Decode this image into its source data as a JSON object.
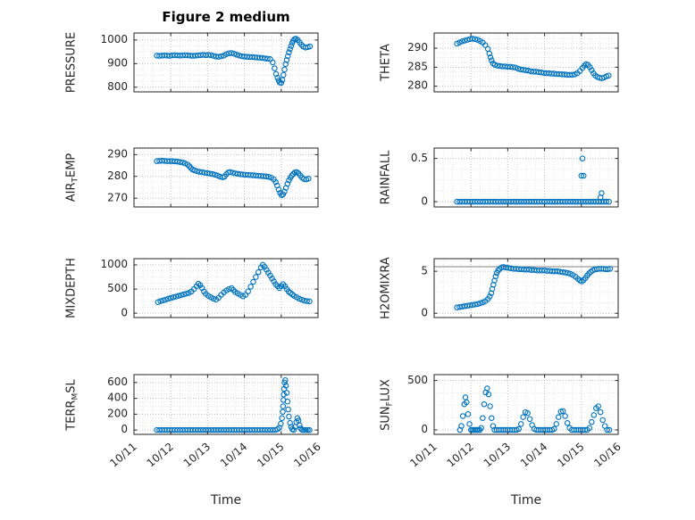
{
  "title": "Figure 2 medium",
  "xlabel": "Time",
  "marker_color": "#0072BD",
  "x_axis": {
    "lim": [
      11,
      16
    ],
    "ticks": [
      11,
      12,
      13,
      14,
      15,
      16
    ],
    "ticklabels": [
      "10/11",
      "10/12",
      "10/13",
      "10/14",
      "10/15",
      "10/16"
    ]
  },
  "chart_data": [
    {
      "name": "PRESSURE",
      "type": "scatter",
      "ylabel": {
        "pre": "PRESSURE",
        "sub": "",
        "post": ""
      },
      "ylim": [
        780,
        1030
      ],
      "yticks": [
        800,
        900,
        1000
      ],
      "x": [
        11.62,
        11.69,
        11.76,
        11.83,
        11.9,
        11.97,
        12.04,
        12.11,
        12.18,
        12.25,
        12.32,
        12.39,
        12.46,
        12.53,
        12.6,
        12.67,
        12.74,
        12.81,
        12.88,
        12.95,
        13.02,
        13.09,
        13.16,
        13.23,
        13.3,
        13.37,
        13.44,
        13.51,
        13.58,
        13.65,
        13.72,
        13.79,
        13.86,
        13.93,
        14.0,
        14.07,
        14.14,
        14.21,
        14.28,
        14.35,
        14.42,
        14.49,
        14.56,
        14.63,
        14.7,
        14.77,
        14.82,
        14.86,
        14.9,
        14.93,
        14.96,
        15.0,
        15.03,
        15.06,
        15.09,
        15.12,
        15.15,
        15.18,
        15.21,
        15.24,
        15.27,
        15.3,
        15.33,
        15.36,
        15.4,
        15.45,
        15.5,
        15.55,
        15.6,
        15.66,
        15.72,
        15.78
      ],
      "y": [
        934,
        933,
        934,
        935,
        934,
        933,
        935,
        936,
        935,
        934,
        935,
        936,
        935,
        934,
        933,
        934,
        935,
        936,
        937,
        936,
        937,
        936,
        933,
        930,
        929,
        931,
        934,
        940,
        944,
        945,
        942,
        938,
        934,
        931,
        930,
        929,
        928,
        928,
        927,
        926,
        925,
        924,
        922,
        921,
        919,
        905,
        880,
        856,
        840,
        828,
        820,
        818,
        830,
        852,
        875,
        898,
        915,
        932,
        948,
        962,
        975,
        988,
        998,
        1004,
        1006,
        1000,
        990,
        980,
        972,
        968,
        970,
        973
      ]
    },
    {
      "name": "THETA",
      "type": "scatter",
      "ylabel": {
        "pre": "THETA",
        "sub": "",
        "post": ""
      },
      "ylim": [
        278.5,
        294
      ],
      "yticks": [
        280,
        285,
        290
      ],
      "x": [
        11.62,
        11.69,
        11.76,
        11.83,
        11.9,
        11.97,
        12.04,
        12.11,
        12.18,
        12.25,
        12.32,
        12.39,
        12.46,
        12.5,
        12.53,
        12.56,
        12.6,
        12.65,
        12.72,
        12.79,
        12.86,
        12.93,
        13.0,
        13.07,
        13.14,
        13.21,
        13.28,
        13.35,
        13.42,
        13.49,
        13.56,
        13.63,
        13.7,
        13.77,
        13.84,
        13.91,
        13.98,
        14.05,
        14.12,
        14.19,
        14.26,
        14.33,
        14.4,
        14.47,
        14.54,
        14.61,
        14.68,
        14.75,
        14.82,
        14.89,
        14.96,
        15.03,
        15.08,
        15.13,
        15.18,
        15.23,
        15.28,
        15.33,
        15.38,
        15.44,
        15.5,
        15.56,
        15.62,
        15.68,
        15.74
      ],
      "y": [
        291.2,
        291.5,
        291.8,
        292.0,
        292.2,
        292.4,
        292.5,
        292.4,
        292.2,
        291.9,
        291.5,
        290.8,
        289.8,
        288.6,
        287.6,
        286.8,
        286.0,
        285.6,
        285.4,
        285.3,
        285.2,
        285.2,
        285.1,
        285.1,
        285.0,
        284.9,
        284.6,
        284.4,
        284.3,
        284.2,
        284.1,
        283.9,
        283.8,
        283.8,
        283.7,
        283.6,
        283.5,
        283.4,
        283.4,
        283.3,
        283.3,
        283.2,
        283.2,
        283.1,
        283.1,
        283.0,
        283.0,
        283.0,
        283.1,
        283.4,
        284.0,
        284.8,
        285.4,
        285.8,
        285.6,
        285.0,
        284.2,
        283.4,
        282.8,
        282.4,
        282.2,
        282.1,
        282.3,
        282.6,
        282.8
      ]
    },
    {
      "name": "AIRTEMP",
      "type": "scatter",
      "ylabel": {
        "pre": "AIR",
        "sub": "T",
        "post": "EMP"
      },
      "ylim": [
        266,
        293
      ],
      "yticks": [
        270,
        280,
        290
      ],
      "x": [
        11.62,
        11.69,
        11.76,
        11.83,
        11.9,
        11.97,
        12.04,
        12.11,
        12.18,
        12.25,
        12.32,
        12.39,
        12.46,
        12.51,
        12.55,
        12.59,
        12.64,
        12.71,
        12.78,
        12.85,
        12.92,
        12.99,
        13.06,
        13.13,
        13.2,
        13.27,
        13.34,
        13.41,
        13.46,
        13.51,
        13.56,
        13.61,
        13.68,
        13.75,
        13.82,
        13.89,
        13.96,
        14.03,
        14.1,
        14.17,
        14.24,
        14.31,
        14.38,
        14.45,
        14.52,
        14.59,
        14.66,
        14.73,
        14.8,
        14.85,
        14.89,
        14.93,
        14.97,
        15.01,
        15.05,
        15.09,
        15.13,
        15.17,
        15.21,
        15.25,
        15.29,
        15.33,
        15.37,
        15.42,
        15.47,
        15.52,
        15.57,
        15.62,
        15.68,
        15.74
      ],
      "y": [
        287.0,
        287.1,
        287.2,
        287.1,
        287.0,
        287.0,
        287.0,
        286.9,
        286.8,
        286.6,
        286.4,
        286.0,
        285.4,
        284.6,
        283.8,
        283.2,
        282.8,
        282.4,
        282.1,
        281.9,
        281.7,
        281.5,
        281.3,
        281.1,
        280.8,
        280.4,
        279.9,
        279.6,
        279.9,
        281.0,
        281.8,
        282.0,
        281.7,
        281.4,
        281.2,
        281.0,
        280.9,
        280.8,
        280.7,
        280.6,
        280.5,
        280.4,
        280.3,
        280.2,
        280.1,
        280.0,
        279.8,
        279.4,
        278.6,
        277.4,
        275.8,
        274.0,
        272.4,
        271.4,
        271.8,
        273.0,
        274.8,
        276.6,
        278.2,
        279.4,
        280.4,
        281.2,
        281.8,
        282.0,
        281.4,
        280.4,
        279.4,
        278.8,
        278.6,
        279.0
      ]
    },
    {
      "name": "RAINFALL",
      "type": "scatter",
      "ylabel": {
        "pre": "RAINFALL",
        "sub": "",
        "post": ""
      },
      "ylim": [
        -0.06,
        0.62
      ],
      "yticks": [
        0,
        0.5
      ],
      "x": [
        11.62,
        11.69,
        11.76,
        11.83,
        11.9,
        11.97,
        12.04,
        12.11,
        12.18,
        12.25,
        12.32,
        12.39,
        12.46,
        12.53,
        12.6,
        12.67,
        12.74,
        12.81,
        12.88,
        12.95,
        13.02,
        13.09,
        13.16,
        13.23,
        13.3,
        13.37,
        13.44,
        13.51,
        13.58,
        13.65,
        13.72,
        13.79,
        13.86,
        13.93,
        14.0,
        14.07,
        14.14,
        14.21,
        14.28,
        14.35,
        14.42,
        14.49,
        14.56,
        14.63,
        14.7,
        14.77,
        14.84,
        14.91,
        14.98,
        15.05,
        15.12,
        15.19,
        15.26,
        15.33,
        15.4,
        15.47,
        15.54,
        15.61,
        15.68,
        15.75,
        15.0,
        15.06,
        15.03,
        15.52,
        15.55
      ],
      "y": [
        0,
        0,
        0,
        0,
        0,
        0,
        0,
        0,
        0,
        0,
        0,
        0,
        0,
        0,
        0,
        0,
        0,
        0,
        0,
        0,
        0,
        0,
        0,
        0,
        0,
        0,
        0,
        0,
        0,
        0,
        0,
        0,
        0,
        0,
        0,
        0,
        0,
        0,
        0,
        0,
        0,
        0,
        0,
        0,
        0,
        0,
        0,
        0,
        0,
        0,
        0,
        0,
        0,
        0,
        0,
        0,
        0,
        0,
        0,
        0,
        0.3,
        0.3,
        0.5,
        0.05,
        0.1
      ]
    },
    {
      "name": "MIXDEPTH",
      "type": "scatter",
      "ylabel": {
        "pre": "MIXDEPTH",
        "sub": "",
        "post": ""
      },
      "ylim": [
        -90,
        1130
      ],
      "yticks": [
        0,
        500,
        1000
      ],
      "x": [
        11.65,
        11.72,
        11.79,
        11.86,
        11.93,
        12.0,
        12.07,
        12.14,
        12.21,
        12.28,
        12.35,
        12.42,
        12.49,
        12.56,
        12.63,
        12.7,
        12.75,
        12.8,
        12.85,
        12.9,
        12.95,
        13.02,
        13.09,
        13.16,
        13.23,
        13.3,
        13.37,
        13.44,
        13.51,
        13.58,
        13.65,
        13.7,
        13.75,
        13.82,
        13.89,
        13.96,
        14.03,
        14.1,
        14.17,
        14.24,
        14.31,
        14.38,
        14.45,
        14.5,
        14.55,
        14.6,
        14.65,
        14.7,
        14.75,
        14.8,
        14.85,
        14.9,
        14.95,
        15.0,
        15.05,
        15.1,
        15.15,
        15.2,
        15.25,
        15.3,
        15.35,
        15.42,
        15.49,
        15.56,
        15.63,
        15.7,
        15.77
      ],
      "y": [
        230,
        250,
        265,
        280,
        300,
        315,
        330,
        345,
        360,
        375,
        390,
        405,
        420,
        450,
        500,
        560,
        610,
        580,
        520,
        450,
        400,
        360,
        330,
        300,
        280,
        320,
        380,
        430,
        470,
        500,
        520,
        480,
        440,
        410,
        380,
        350,
        380,
        450,
        550,
        650,
        750,
        850,
        950,
        1000,
        960,
        900,
        840,
        780,
        720,
        660,
        600,
        560,
        520,
        560,
        600,
        560,
        500,
        450,
        420,
        390,
        360,
        330,
        300,
        280,
        260,
        250,
        245
      ]
    },
    {
      "name": "H2OMIXRA",
      "type": "scatter",
      "ylabel": {
        "pre": "H2OMIXRA",
        "sub": "",
        "post": ""
      },
      "ylim": [
        -0.5,
        6.5
      ],
      "yticks": [
        0,
        5
      ],
      "hline": 5.55,
      "x": [
        11.62,
        11.69,
        11.76,
        11.83,
        11.9,
        11.97,
        12.04,
        12.11,
        12.18,
        12.25,
        12.32,
        12.39,
        12.46,
        12.51,
        12.55,
        12.58,
        12.61,
        12.64,
        12.67,
        12.7,
        12.74,
        12.78,
        12.83,
        12.88,
        12.95,
        13.02,
        13.09,
        13.16,
        13.23,
        13.3,
        13.37,
        13.44,
        13.51,
        13.58,
        13.65,
        13.72,
        13.79,
        13.86,
        13.93,
        14.0,
        14.07,
        14.14,
        14.21,
        14.28,
        14.35,
        14.42,
        14.49,
        14.56,
        14.63,
        14.7,
        14.77,
        14.84,
        14.91,
        14.96,
        15.01,
        15.06,
        15.11,
        15.16,
        15.21,
        15.26,
        15.31,
        15.36,
        15.42,
        15.48,
        15.54,
        15.6,
        15.66,
        15.72,
        15.78
      ],
      "y": [
        0.7,
        0.75,
        0.8,
        0.85,
        0.9,
        0.95,
        1.0,
        1.05,
        1.1,
        1.2,
        1.3,
        1.45,
        1.7,
        2.0,
        2.4,
        2.9,
        3.4,
        3.9,
        4.4,
        4.8,
        5.1,
        5.3,
        5.45,
        5.5,
        5.45,
        5.4,
        5.35,
        5.3,
        5.3,
        5.25,
        5.25,
        5.2,
        5.2,
        5.2,
        5.15,
        5.15,
        5.1,
        5.1,
        5.1,
        5.1,
        5.05,
        5.05,
        5.0,
        5.0,
        5.0,
        4.95,
        4.9,
        4.85,
        4.8,
        4.7,
        4.55,
        4.35,
        4.1,
        3.9,
        3.8,
        3.95,
        4.2,
        4.5,
        4.75,
        4.95,
        5.1,
        5.2,
        5.25,
        5.3,
        5.3,
        5.3,
        5.25,
        5.25,
        5.3
      ]
    },
    {
      "name": "TERRMSL",
      "type": "scatter",
      "ylabel": {
        "pre": "TERR",
        "sub": "M",
        "post": "SL"
      },
      "ylim": [
        -55,
        700
      ],
      "yticks": [
        0,
        200,
        400,
        600
      ],
      "x": [
        11.62,
        11.69,
        11.76,
        11.83,
        11.9,
        11.97,
        12.04,
        12.11,
        12.18,
        12.25,
        12.32,
        12.39,
        12.46,
        12.53,
        12.6,
        12.67,
        12.74,
        12.81,
        12.88,
        12.95,
        13.02,
        13.09,
        13.16,
        13.23,
        13.3,
        13.37,
        13.44,
        13.51,
        13.58,
        13.65,
        13.72,
        13.79,
        13.86,
        13.93,
        14.0,
        14.07,
        14.14,
        14.21,
        14.28,
        14.35,
        14.42,
        14.49,
        14.56,
        14.63,
        14.7,
        14.77,
        14.84,
        14.9,
        14.95,
        14.99,
        15.02,
        15.04,
        15.05,
        15.06,
        15.07,
        15.08,
        15.09,
        15.11,
        15.13,
        15.15,
        15.17,
        15.19,
        15.21,
        15.24,
        15.27,
        15.3,
        15.34,
        15.38,
        15.41,
        15.44,
        15.47,
        15.5,
        15.53,
        15.57,
        15.62,
        15.67,
        15.72,
        15.77
      ],
      "y": [
        0,
        0,
        0,
        0,
        0,
        0,
        0,
        0,
        0,
        0,
        0,
        0,
        0,
        0,
        0,
        0,
        0,
        0,
        0,
        0,
        0,
        0,
        0,
        0,
        0,
        0,
        0,
        0,
        0,
        0,
        0,
        0,
        0,
        0,
        0,
        0,
        0,
        0,
        0,
        0,
        0,
        0,
        0,
        0,
        0,
        0,
        0,
        10,
        30,
        80,
        150,
        230,
        300,
        380,
        450,
        520,
        600,
        630,
        560,
        470,
        360,
        260,
        170,
        90,
        40,
        10,
        0,
        40,
        100,
        150,
        120,
        60,
        20,
        0,
        0,
        0,
        0,
        0
      ]
    },
    {
      "name": "SUNFLUX",
      "type": "scatter",
      "ylabel": {
        "pre": "SUN",
        "sub": "F",
        "post": "LUX"
      },
      "ylim": [
        -45,
        560
      ],
      "yticks": [
        0,
        500
      ],
      "x": [
        11.7,
        11.74,
        11.78,
        11.82,
        11.85,
        11.88,
        11.92,
        11.96,
        12.0,
        12.04,
        12.08,
        12.12,
        12.16,
        12.2,
        12.24,
        12.28,
        12.32,
        12.36,
        12.4,
        12.44,
        12.48,
        12.52,
        12.56,
        12.6,
        12.64,
        12.7,
        12.76,
        12.82,
        12.88,
        12.94,
        13.0,
        13.06,
        13.12,
        13.18,
        13.24,
        13.3,
        13.36,
        13.42,
        13.48,
        13.54,
        13.6,
        13.66,
        13.72,
        13.78,
        13.84,
        13.9,
        13.96,
        14.02,
        14.08,
        14.14,
        14.2,
        14.26,
        14.32,
        14.38,
        14.44,
        14.5,
        14.56,
        14.62,
        14.68,
        14.74,
        14.8,
        14.86,
        14.92,
        14.98,
        15.04,
        15.1,
        15.16,
        15.22,
        15.28,
        15.34,
        15.4,
        15.46,
        15.52,
        15.58,
        15.64,
        15.7,
        15.76
      ],
      "y": [
        0,
        40,
        140,
        260,
        330,
        280,
        160,
        60,
        0,
        0,
        0,
        0,
        0,
        0,
        0,
        20,
        120,
        260,
        380,
        420,
        360,
        240,
        120,
        40,
        0,
        0,
        0,
        0,
        0,
        0,
        0,
        0,
        0,
        0,
        0,
        10,
        60,
        130,
        180,
        170,
        110,
        50,
        10,
        0,
        0,
        0,
        0,
        0,
        0,
        0,
        0,
        10,
        60,
        130,
        185,
        190,
        140,
        70,
        20,
        0,
        0,
        0,
        0,
        0,
        0,
        0,
        0,
        20,
        80,
        150,
        220,
        240,
        180,
        100,
        40,
        0,
        0
      ]
    }
  ]
}
